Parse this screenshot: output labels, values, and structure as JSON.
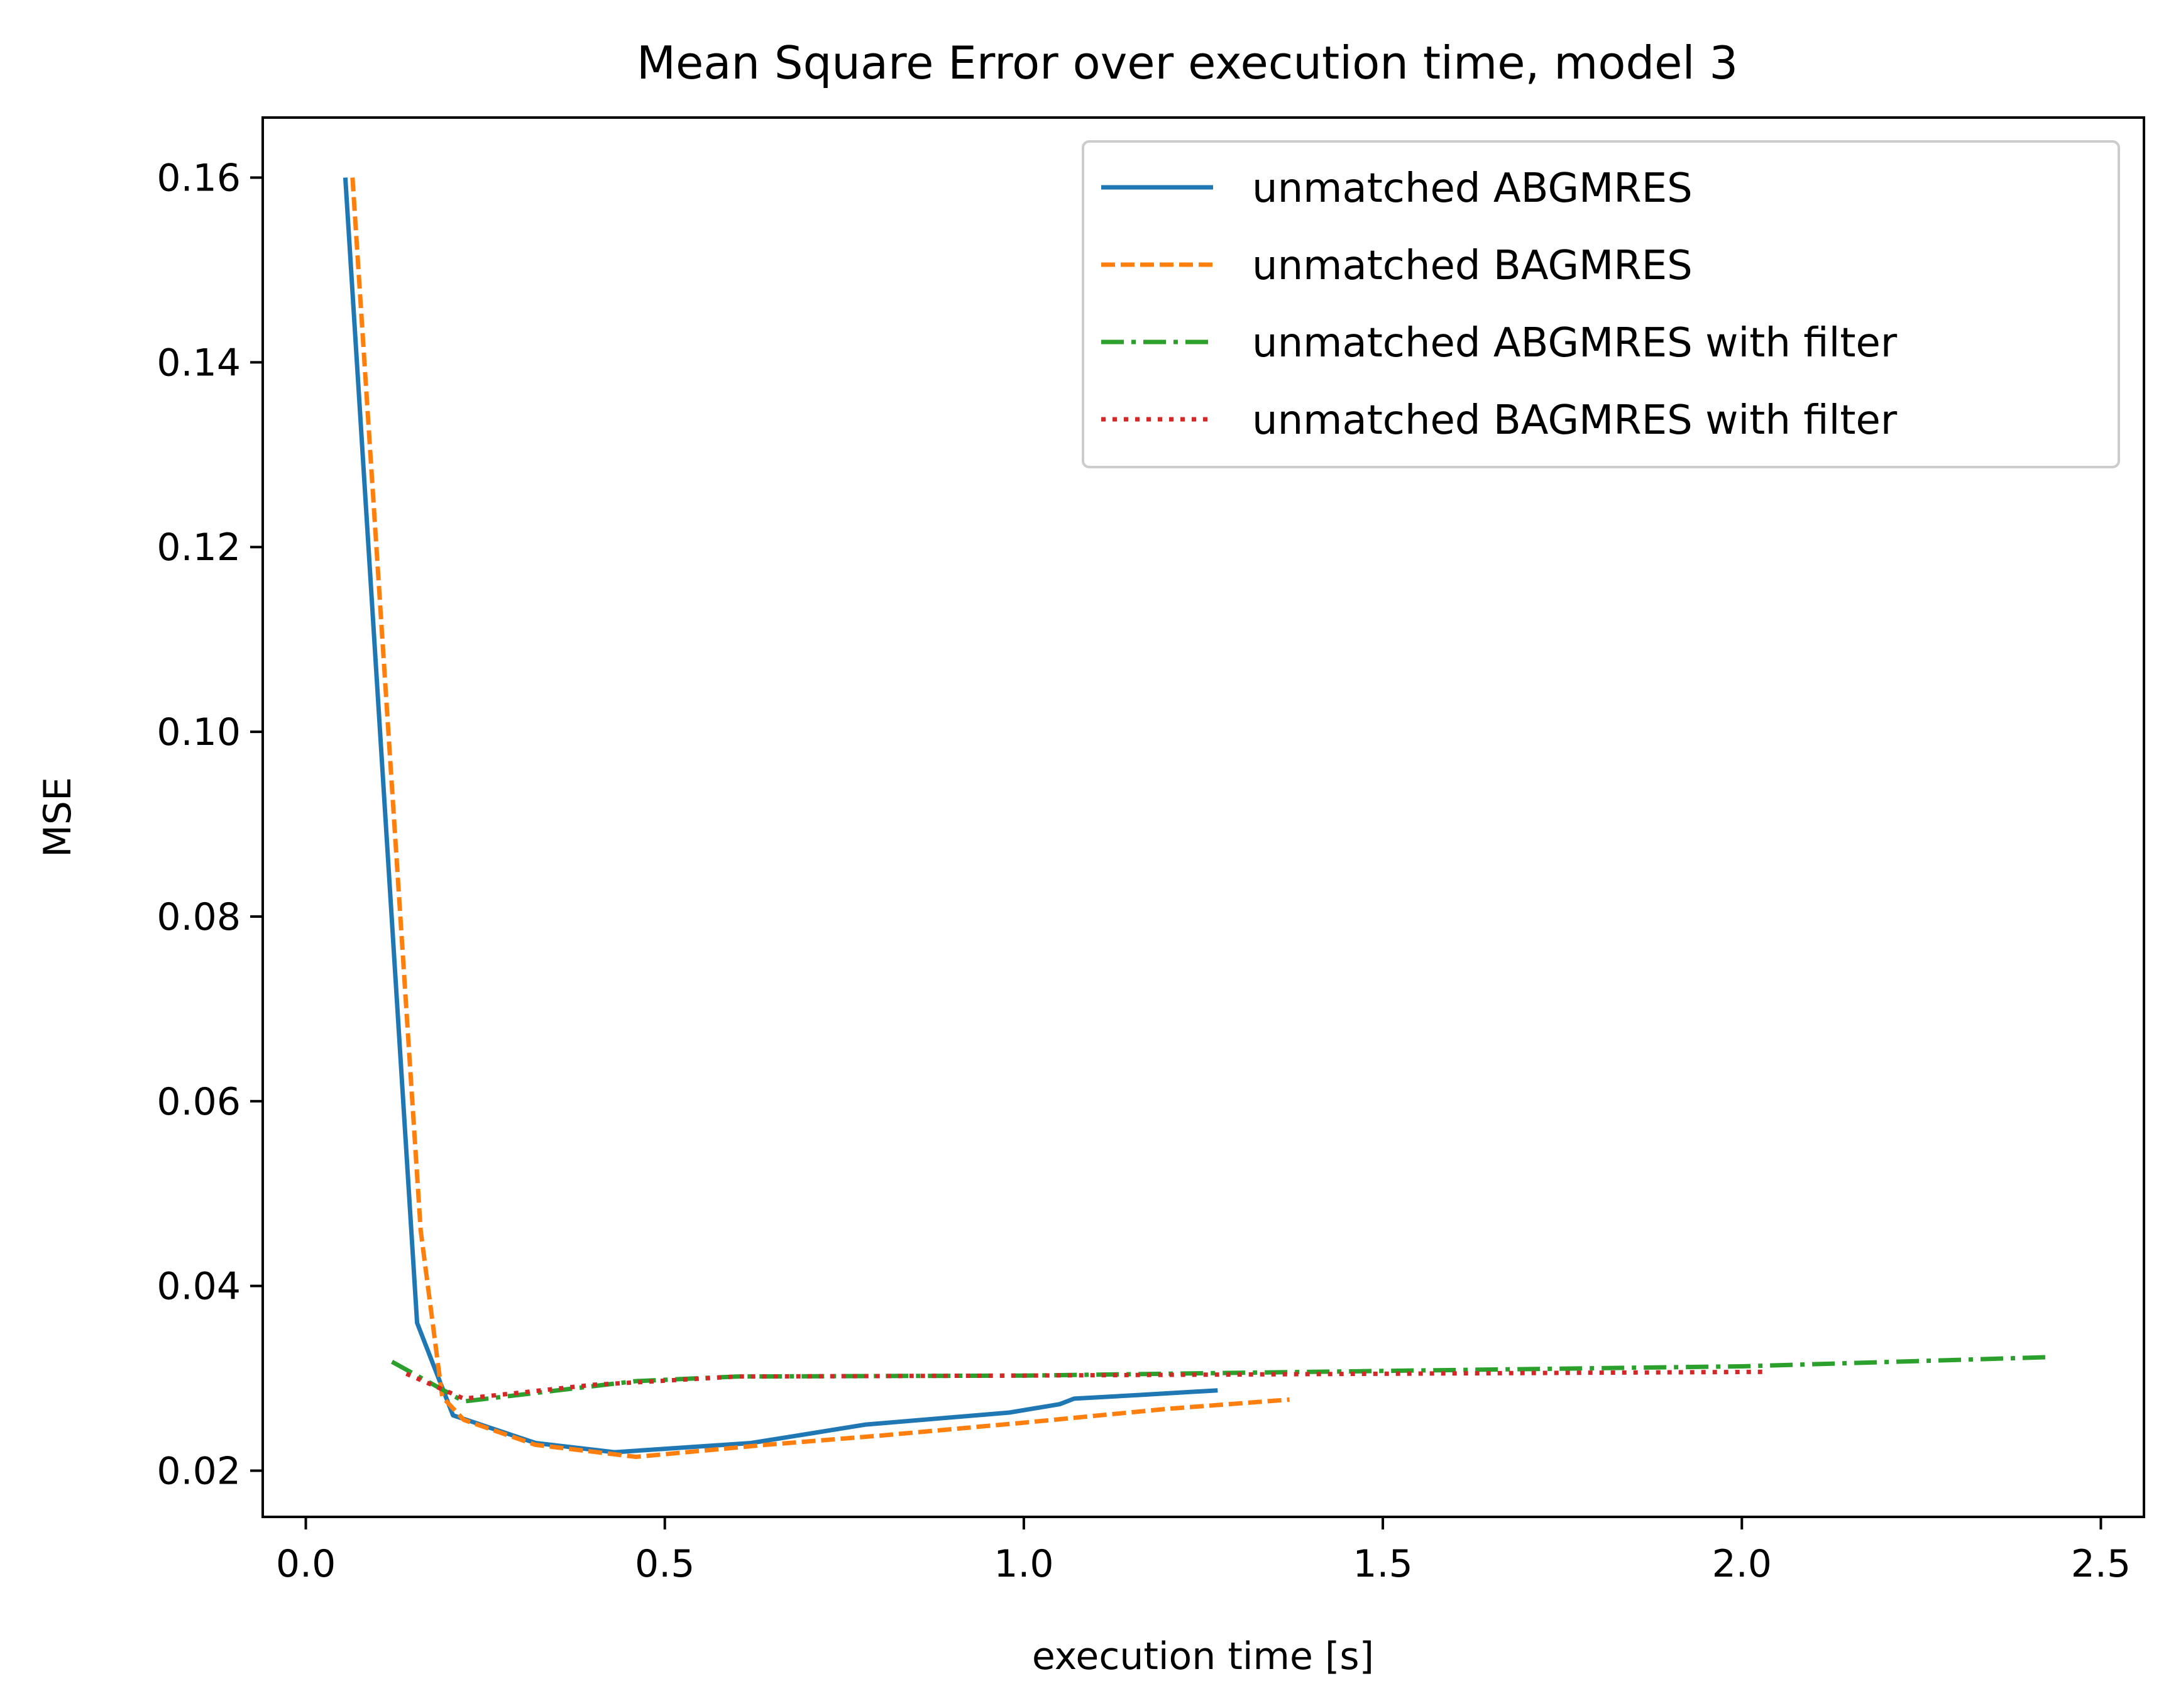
{
  "chart_data": {
    "type": "line",
    "title": "Mean Square Error over execution time, model 3",
    "xlabel": "execution time [s]",
    "ylabel": "MSE",
    "xlim": [
      -0.06,
      2.56
    ],
    "ylim": [
      0.015,
      0.1665
    ],
    "xticks": [
      {
        "value": 0.0,
        "label": "0.0"
      },
      {
        "value": 0.5,
        "label": "0.5"
      },
      {
        "value": 1.0,
        "label": "1.0"
      },
      {
        "value": 1.5,
        "label": "1.5"
      },
      {
        "value": 2.0,
        "label": "2.0"
      },
      {
        "value": 2.5,
        "label": "2.5"
      }
    ],
    "yticks": [
      {
        "value": 0.02,
        "label": "0.02"
      },
      {
        "value": 0.04,
        "label": "0.04"
      },
      {
        "value": 0.06,
        "label": "0.06"
      },
      {
        "value": 0.08,
        "label": "0.08"
      },
      {
        "value": 0.1,
        "label": "0.10"
      },
      {
        "value": 0.12,
        "label": "0.12"
      },
      {
        "value": 0.14,
        "label": "0.14"
      },
      {
        "value": 0.16,
        "label": "0.16"
      }
    ],
    "grid": false,
    "legend_position": "upper right",
    "series": [
      {
        "name": "unmatched ABGMRES",
        "color": "#1f77b4",
        "style": "solid",
        "x": [
          0.055,
          0.155,
          0.205,
          0.32,
          0.43,
          0.62,
          0.78,
          0.98,
          1.05,
          1.07,
          1.16,
          1.27
        ],
        "y": [
          0.16,
          0.036,
          0.026,
          0.023,
          0.022,
          0.023,
          0.025,
          0.0263,
          0.0272,
          0.0278,
          0.0282,
          0.0287
        ]
      },
      {
        "name": "unmatched BAGMRES",
        "color": "#ff7f0e",
        "style": "dashed",
        "x": [
          0.065,
          0.16,
          0.19,
          0.22,
          0.32,
          0.46,
          0.64,
          0.8,
          1.0,
          1.2,
          1.37
        ],
        "y": [
          0.16,
          0.046,
          0.028,
          0.0255,
          0.0228,
          0.0215,
          0.0228,
          0.0238,
          0.0252,
          0.0267,
          0.0277
        ]
      },
      {
        "name": "unmatched ABGMRES with filter",
        "color": "#2ca02c",
        "style": "dashdot",
        "x": [
          0.12,
          0.22,
          0.46,
          0.6,
          1.0,
          1.5,
          2.0,
          2.43
        ],
        "y": [
          0.0318,
          0.0275,
          0.0297,
          0.0302,
          0.0303,
          0.0308,
          0.0313,
          0.0323
        ]
      },
      {
        "name": "unmatched BAGMRES with filter",
        "color": "#d62728",
        "style": "dotted",
        "x": [
          0.14,
          0.22,
          0.4,
          0.6,
          1.0,
          1.5,
          2.03
        ],
        "y": [
          0.0305,
          0.0278,
          0.0293,
          0.0302,
          0.0303,
          0.0305,
          0.0307
        ]
      }
    ]
  }
}
